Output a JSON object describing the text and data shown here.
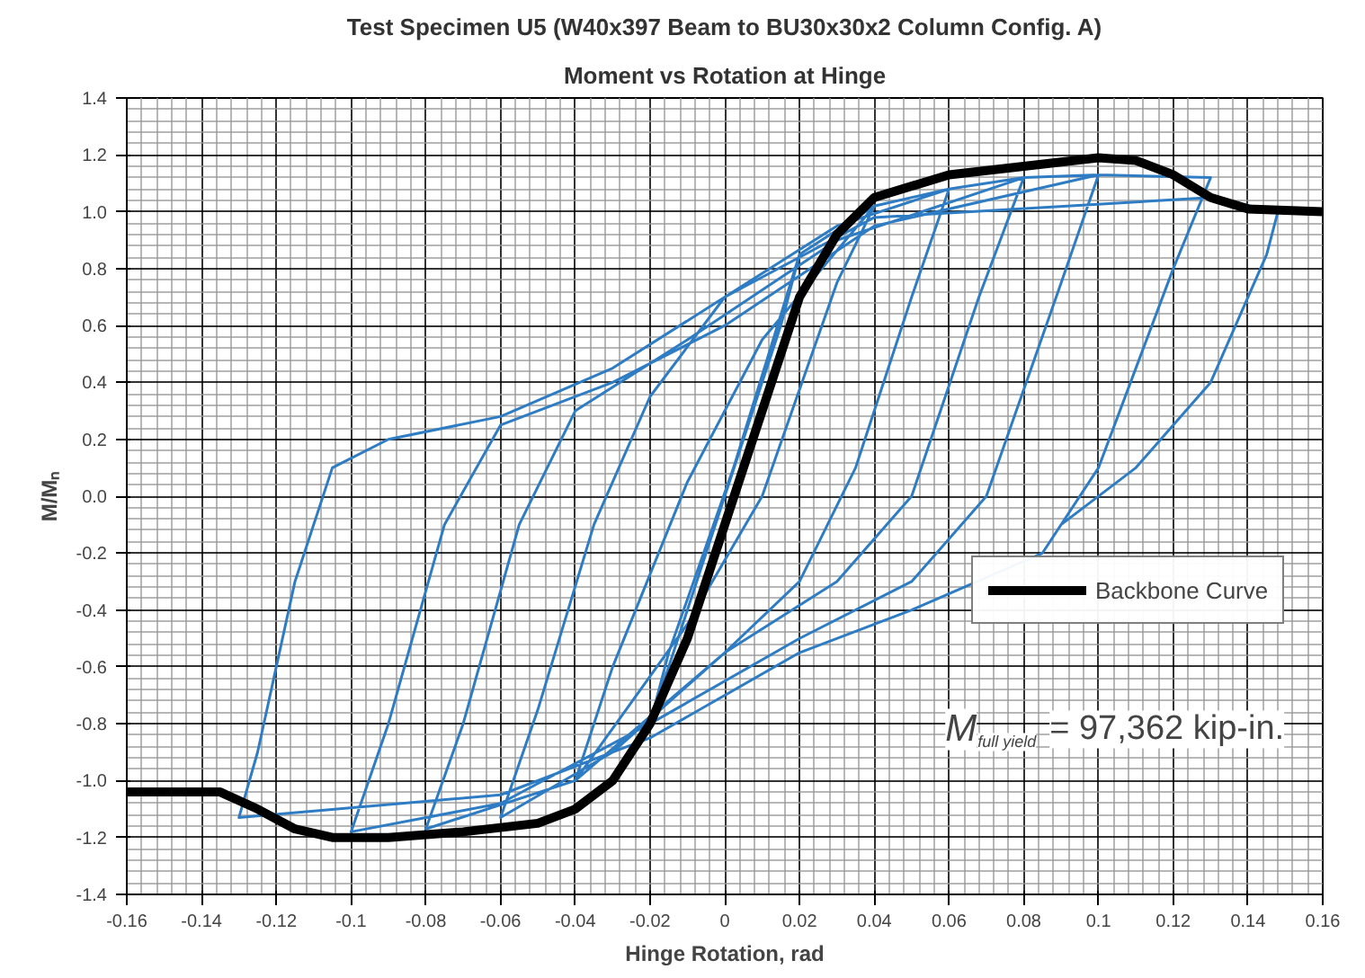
{
  "chart_data": {
    "type": "line",
    "title": "Test Specimen U5 (W40x397 Beam to BU30x30x2 Column Config. A)",
    "subtitle": "Moment vs Rotation at Hinge",
    "xlabel": "Hinge Rotation, rad",
    "ylabel": "M/Mₙ",
    "xlim": [
      -0.16,
      0.16
    ],
    "ylim": [
      -1.4,
      1.4
    ],
    "xticks": [
      -0.16,
      -0.14,
      -0.12,
      -0.1,
      -0.08,
      -0.06,
      -0.04,
      -0.02,
      0,
      0.02,
      0.04,
      0.06,
      0.08,
      0.1,
      0.12,
      0.14,
      0.16
    ],
    "yticks": [
      {
        "value": -1.4,
        "label": "-1.4"
      },
      {
        "value": -1.2,
        "label": "-1.2"
      },
      {
        "value": -1.0,
        "label": "-1.0"
      },
      {
        "value": -0.8,
        "label": "-0.8"
      },
      {
        "value": -0.6,
        "label": "-0.6"
      },
      {
        "value": -0.4,
        "label": "-0.4"
      },
      {
        "value": -0.2,
        "label": "-0.2"
      },
      {
        "value": 0,
        "label": "0.0"
      },
      {
        "value": 0.2,
        "label": "0.2"
      },
      {
        "value": 0.4,
        "label": "0.4"
      },
      {
        "value": 0.6,
        "label": "0.6"
      },
      {
        "value": 0.8,
        "label": "0.8"
      },
      {
        "value": 1.0,
        "label": "1.0"
      },
      {
        "value": 1.2,
        "label": "1.2"
      },
      {
        "value": 1.4,
        "label": "1.4"
      }
    ],
    "grid": true,
    "legend": "bottom right",
    "line_style": "solid",
    "marker": "none",
    "annotations": [
      "M$_{full yield}$= 97,362 kip-in."
    ],
    "series": [
      {
        "color": "#2e7dc4",
        "x": [
          0,
          0.02,
          0.015,
          -0.005,
          -0.02,
          -0.015,
          0.005,
          0.02,
          0.04,
          0.03,
          0.01,
          -0.01,
          -0.04,
          -0.03,
          -0.01,
          0.01,
          0.04,
          0.06,
          0.05,
          0.035,
          0.02,
          0,
          -0.03,
          -0.06,
          -0.05,
          -0.035,
          -0.02,
          0,
          0.03,
          0.06,
          0.08,
          0.068,
          0.05,
          0.03,
          0,
          -0.04,
          -0.08,
          -0.07,
          -0.055,
          -0.04,
          -0.01,
          0.03,
          0.08,
          0.1,
          0.09,
          0.07,
          0.05,
          0.02,
          -0.02,
          -0.06,
          -0.1,
          -0.09,
          -0.075,
          -0.06,
          -0.03,
          0,
          0.04,
          0.1,
          0.13,
          0.12,
          0.1,
          0.085,
          0.05,
          0.02,
          -0.02,
          -0.06,
          -0.13,
          -0.125,
          -0.115,
          -0.105,
          -0.09,
          -0.06,
          -0.03,
          0,
          0.04,
          0.13,
          0.148,
          0.145,
          0.13,
          0.11,
          0.09
        ],
        "values": [
          0,
          0.85,
          0.6,
          -0.2,
          -0.8,
          -0.55,
          0.2,
          0.85,
          1.02,
          0.75,
          0,
          -0.45,
          -1.0,
          -0.6,
          0.05,
          0.55,
          1.02,
          1.08,
          0.7,
          0.1,
          -0.3,
          -0.55,
          -0.9,
          -1.13,
          -0.75,
          -0.1,
          0.35,
          0.7,
          0.95,
          1.08,
          1.12,
          0.7,
          0,
          -0.3,
          -0.55,
          -1.0,
          -1.17,
          -0.8,
          -0.1,
          0.3,
          0.55,
          0.9,
          1.12,
          1.13,
          0.75,
          0,
          -0.3,
          -0.5,
          -0.8,
          -1.08,
          -1.18,
          -0.8,
          -0.1,
          0.25,
          0.4,
          0.6,
          0.95,
          1.13,
          1.12,
          0.8,
          0.1,
          -0.2,
          -0.4,
          -0.55,
          -0.85,
          -1.05,
          -1.13,
          -0.9,
          -0.3,
          0.1,
          0.2,
          0.28,
          0.45,
          0.7,
          0.98,
          1.05,
          1.0,
          0.85,
          0.4,
          0.1,
          -0.1
        ]
      },
      {
        "name": "Backbone Curve",
        "color": "#000000",
        "x": [
          -0.16,
          -0.135,
          -0.125,
          -0.115,
          -0.105,
          -0.09,
          -0.07,
          -0.05,
          -0.04,
          -0.03,
          -0.02,
          -0.01,
          0,
          0.01,
          0.02,
          0.03,
          0.04,
          0.06,
          0.08,
          0.1,
          0.11,
          0.12,
          0.13,
          0.14,
          0.16
        ],
        "values": [
          -1.04,
          -1.04,
          -1.1,
          -1.17,
          -1.2,
          -1.2,
          -1.18,
          -1.15,
          -1.1,
          -1.0,
          -0.8,
          -0.5,
          -0.1,
          0.3,
          0.7,
          0.92,
          1.05,
          1.13,
          1.16,
          1.19,
          1.18,
          1.13,
          1.05,
          1.01,
          1.0
        ]
      }
    ]
  }
}
